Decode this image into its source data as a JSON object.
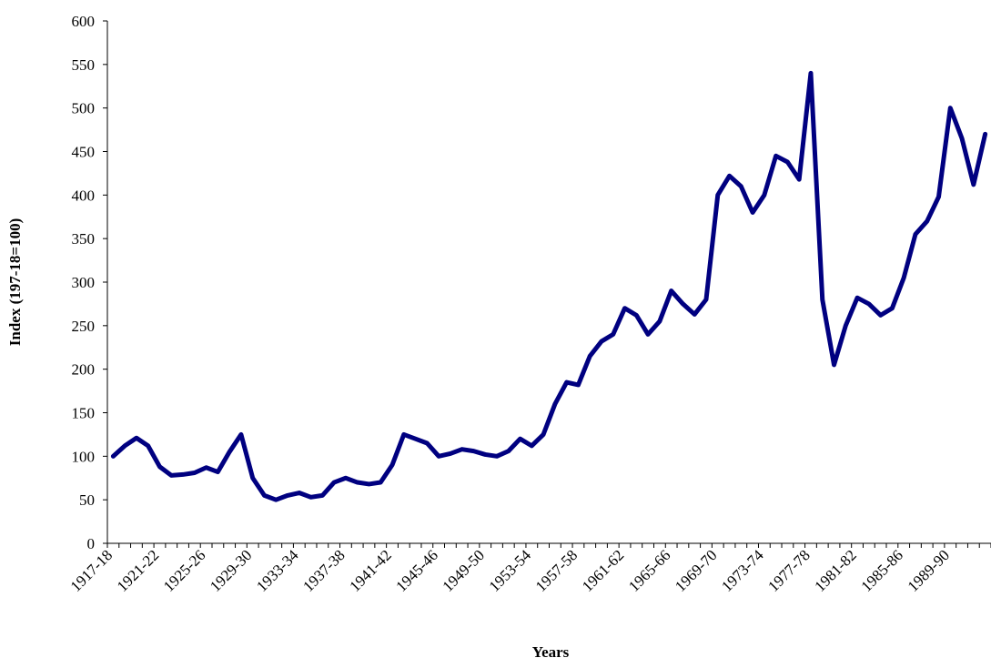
{
  "chart_data": {
    "type": "line",
    "x_label": "Years",
    "y_label": "Index (197-18=100)",
    "categories": [
      "1917-18",
      null,
      null,
      null,
      "1921-22",
      null,
      null,
      null,
      "1925-26",
      null,
      null,
      null,
      "1929-30",
      null,
      null,
      null,
      "1933-34",
      null,
      null,
      null,
      "1937-38",
      null,
      null,
      null,
      "1941-42",
      null,
      null,
      null,
      "1945-46",
      null,
      null,
      null,
      "1949-50",
      null,
      null,
      null,
      "1953-54",
      null,
      null,
      null,
      "1957-58",
      null,
      null,
      null,
      "1961-62",
      null,
      null,
      null,
      "1965-66",
      null,
      null,
      null,
      "1969-70",
      null,
      null,
      null,
      "1973-74",
      null,
      null,
      null,
      "1977-78",
      null,
      null,
      null,
      "1981-82",
      null,
      null,
      null,
      "1985-86",
      null,
      null,
      null,
      "1989-90",
      null,
      null,
      null
    ],
    "series": [
      {
        "color": "#000080",
        "values": [
          100,
          112,
          121,
          112,
          88,
          78,
          79,
          81,
          87,
          82,
          105,
          125,
          75,
          55,
          50,
          55,
          58,
          53,
          55,
          70,
          75,
          70,
          68,
          70,
          90,
          125,
          120,
          115,
          100,
          103,
          108,
          106,
          102,
          100,
          106,
          120,
          112,
          125,
          160,
          185,
          182,
          215,
          232,
          240,
          270,
          262,
          240,
          255,
          290,
          275,
          263,
          280,
          400,
          422,
          410,
          380,
          400,
          445,
          438,
          418,
          540,
          280,
          205,
          250,
          282,
          275,
          262,
          270,
          305,
          355,
          370,
          398,
          500,
          465,
          412,
          470
        ]
      }
    ],
    "ylim": [
      0,
      600
    ],
    "yticks": [
      0,
      50,
      100,
      150,
      200,
      250,
      300,
      350,
      400,
      450,
      500,
      550,
      600
    ]
  }
}
